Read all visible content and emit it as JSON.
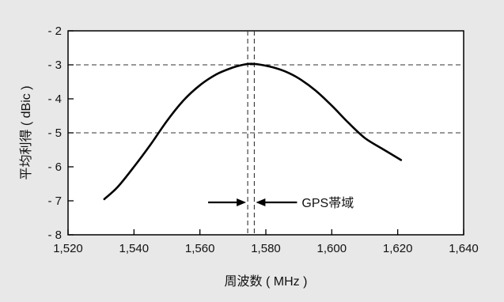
{
  "chart_data": {
    "type": "line",
    "xlabel": "周波数 ( MHz )",
    "ylabel": "平均利得 ( dBic )",
    "xlim": [
      1520,
      1640
    ],
    "ylim": [
      -8,
      -2
    ],
    "x_ticks": [
      1520,
      1540,
      1560,
      1580,
      1600,
      1620,
      1640
    ],
    "x_tick_labels": [
      "1,520",
      "1,540",
      "1,560",
      "1,580",
      "1,600",
      "1,620",
      "1,640"
    ],
    "y_ticks": [
      -2,
      -3,
      -4,
      -5,
      -6,
      -7,
      -8
    ],
    "y_tick_labels": [
      "- 2",
      "- 3",
      "- 4",
      "- 5",
      "- 6",
      "- 7",
      "- 8"
    ],
    "grid": false,
    "reference_lines": {
      "horizontal": [
        -3,
        -5
      ],
      "vertical": [
        1574.5,
        1576.5
      ]
    },
    "series": [
      {
        "color": "#000000",
        "x": [
          1531,
          1535,
          1540,
          1545,
          1550,
          1555,
          1560,
          1565,
          1570,
          1573,
          1575.4,
          1578,
          1582,
          1586,
          1590,
          1595,
          1600,
          1605,
          1610,
          1615,
          1621
        ],
        "y": [
          -6.95,
          -6.6,
          -6.0,
          -5.35,
          -4.65,
          -4.05,
          -3.6,
          -3.28,
          -3.08,
          -3.0,
          -2.97,
          -2.99,
          -3.07,
          -3.2,
          -3.4,
          -3.75,
          -4.2,
          -4.7,
          -5.15,
          -5.45,
          -5.8
        ]
      }
    ],
    "annotations": [
      {
        "text": "GPS帯域",
        "x_range": [
          1574.5,
          1576.5
        ],
        "y": -7
      }
    ]
  }
}
